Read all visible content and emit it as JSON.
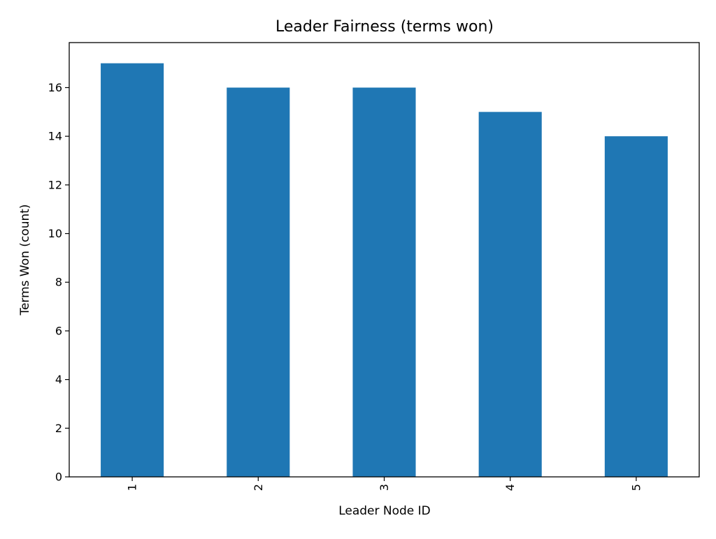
{
  "chart_data": {
    "type": "bar",
    "title": "Leader Fairness (terms won)",
    "xlabel": "Leader Node ID",
    "ylabel": "Terms Won (count)",
    "categories": [
      "1",
      "2",
      "3",
      "4",
      "5"
    ],
    "values": [
      17,
      16,
      16,
      15,
      14
    ],
    "ylim": [
      0,
      17.85
    ],
    "yticks": [
      0,
      2,
      4,
      6,
      8,
      10,
      12,
      14,
      16
    ],
    "x_tick_rotation": "vertical",
    "grid": false,
    "legend": "none",
    "bar_color": "#1f77b4",
    "axis_color": "#000000"
  }
}
